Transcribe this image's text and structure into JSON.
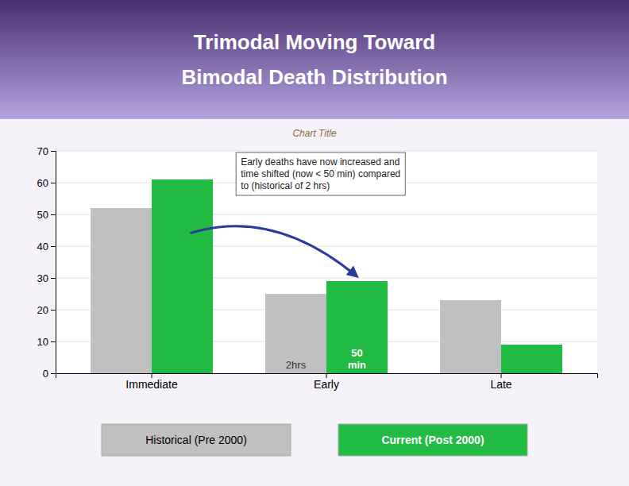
{
  "chart_data": {
    "type": "bar",
    "title": "Trimodal Moving Toward\nBimodal Death Distribution",
    "subtitle": "Chart Title",
    "categories": [
      "Immediate",
      "Early",
      "Late"
    ],
    "series": [
      {
        "name": "Historical (Pre 2000)",
        "color": "#c0c0c0",
        "values": [
          52,
          25,
          23
        ]
      },
      {
        "name": "Current (Post 2000)",
        "color": "#22bb44",
        "values": [
          61,
          29,
          9
        ]
      }
    ],
    "ylim": [
      0,
      70
    ],
    "yticks": [
      0,
      10,
      20,
      30,
      40,
      50,
      60,
      70
    ],
    "grid": true,
    "legend": "bottom",
    "annotations": [
      "Early deaths have now increased and\ntime shifted (now < 50 min) compared\nto (historical of 2 hrs)",
      "2hrs",
      "50\nmin"
    ]
  }
}
